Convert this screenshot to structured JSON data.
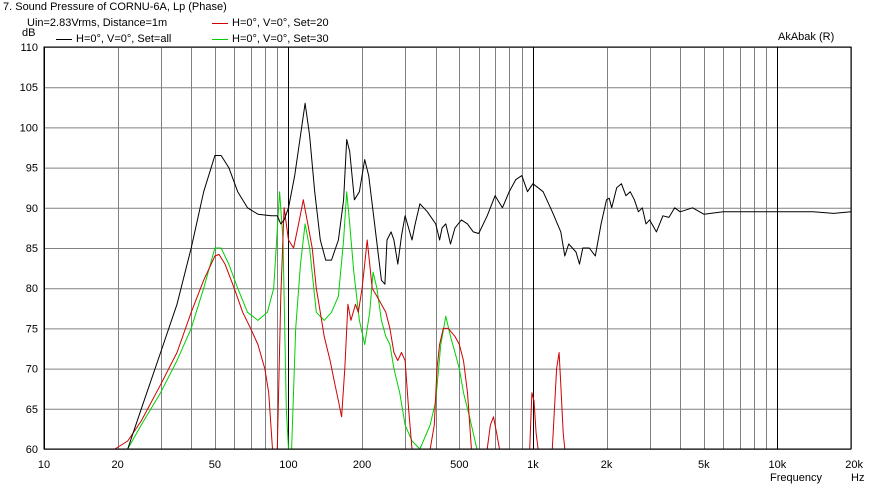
{
  "window": {
    "title": "7. Sound Pressure of CORNU-6A, Lp (Phase)"
  },
  "header": {
    "conditions": "Uin=2.83Vrms, Distance=1m",
    "credit": "AkAbak (R)"
  },
  "colors": {
    "set_all": "#000000",
    "set_20": "#d00000",
    "set_30": "#00d000",
    "grid": "#808080",
    "axis": "#000000"
  },
  "chart_data": {
    "type": "line",
    "title": "7. Sound Pressure of CORNU-6A, Lp (Phase)",
    "xlabel": "Frequency",
    "xunit": "Hz",
    "ylabel": "",
    "yunit": "dB",
    "x_scale": "log",
    "xlim": [
      10,
      20000
    ],
    "ylim": [
      60,
      110
    ],
    "grid": true,
    "legend": "top-left",
    "x_ticks": [
      {
        "value": 10,
        "label": "10"
      },
      {
        "value": 20,
        "label": "20"
      },
      {
        "value": 50,
        "label": "50"
      },
      {
        "value": 100,
        "label": "100"
      },
      {
        "value": 200,
        "label": "200"
      },
      {
        "value": 500,
        "label": "500"
      },
      {
        "value": 1000,
        "label": "1k"
      },
      {
        "value": 2000,
        "label": "2k"
      },
      {
        "value": 5000,
        "label": "5k"
      },
      {
        "value": 10000,
        "label": "10k"
      },
      {
        "value": 20000,
        "label": "20k"
      }
    ],
    "y_ticks": [
      60,
      65,
      70,
      75,
      80,
      85,
      90,
      95,
      100,
      105,
      110
    ],
    "series": [
      {
        "name": "H=0°, V=0°, Set=all",
        "color": "#000000",
        "points": [
          [
            22,
            60
          ],
          [
            25,
            65
          ],
          [
            30,
            72
          ],
          [
            35,
            78
          ],
          [
            40,
            85
          ],
          [
            45,
            92
          ],
          [
            50,
            96.5
          ],
          [
            53,
            96.5
          ],
          [
            57,
            95
          ],
          [
            62,
            92
          ],
          [
            68,
            90
          ],
          [
            75,
            89.2
          ],
          [
            85,
            89
          ],
          [
            90,
            89
          ],
          [
            93,
            88
          ],
          [
            96,
            88.5
          ],
          [
            100,
            90
          ],
          [
            106,
            94
          ],
          [
            112,
            99
          ],
          [
            117,
            103
          ],
          [
            122,
            99
          ],
          [
            128,
            92
          ],
          [
            135,
            86
          ],
          [
            142,
            83.5
          ],
          [
            150,
            83.5
          ],
          [
            160,
            86
          ],
          [
            168,
            91
          ],
          [
            173,
            98.5
          ],
          [
            178,
            97
          ],
          [
            186,
            91
          ],
          [
            195,
            92
          ],
          [
            205,
            96
          ],
          [
            213,
            94
          ],
          [
            225,
            88
          ],
          [
            240,
            81
          ],
          [
            248,
            80.5
          ],
          [
            253,
            86
          ],
          [
            263,
            87
          ],
          [
            270,
            86
          ],
          [
            280,
            83
          ],
          [
            290,
            86.5
          ],
          [
            300,
            89
          ],
          [
            320,
            86
          ],
          [
            330,
            88
          ],
          [
            345,
            90.5
          ],
          [
            370,
            89.5
          ],
          [
            400,
            88
          ],
          [
            415,
            86
          ],
          [
            425,
            87.5
          ],
          [
            440,
            88
          ],
          [
            460,
            85.5
          ],
          [
            480,
            87.5
          ],
          [
            510,
            88.5
          ],
          [
            540,
            88
          ],
          [
            570,
            87
          ],
          [
            600,
            86.8
          ],
          [
            650,
            89
          ],
          [
            700,
            91.5
          ],
          [
            750,
            90
          ],
          [
            800,
            92
          ],
          [
            850,
            93.5
          ],
          [
            900,
            94
          ],
          [
            950,
            92
          ],
          [
            1000,
            93
          ],
          [
            1100,
            92
          ],
          [
            1200,
            89.5
          ],
          [
            1300,
            87
          ],
          [
            1350,
            84
          ],
          [
            1400,
            85.5
          ],
          [
            1500,
            84.5
          ],
          [
            1550,
            83
          ],
          [
            1600,
            85
          ],
          [
            1700,
            85
          ],
          [
            1800,
            84
          ],
          [
            1900,
            88
          ],
          [
            2000,
            91
          ],
          [
            2050,
            91.2
          ],
          [
            2100,
            90
          ],
          [
            2200,
            92.5
          ],
          [
            2300,
            93
          ],
          [
            2400,
            91.5
          ],
          [
            2500,
            92
          ],
          [
            2600,
            91
          ],
          [
            2700,
            89.5
          ],
          [
            2800,
            90
          ],
          [
            2900,
            88
          ],
          [
            3000,
            88.5
          ],
          [
            3200,
            87
          ],
          [
            3400,
            89
          ],
          [
            3600,
            88.8
          ],
          [
            3800,
            90
          ],
          [
            4000,
            89.5
          ],
          [
            4500,
            90
          ],
          [
            5000,
            89.2
          ],
          [
            6000,
            89.5
          ],
          [
            8000,
            89.5
          ],
          [
            10000,
            89.5
          ],
          [
            14000,
            89.5
          ],
          [
            17000,
            89.3
          ],
          [
            20000,
            89.5
          ]
        ]
      },
      {
        "name": "H=0°, V=0°, Set=20",
        "color": "#d00000",
        "points": [
          [
            19.5,
            60
          ],
          [
            22,
            61
          ],
          [
            25,
            63.5
          ],
          [
            30,
            68
          ],
          [
            35,
            72
          ],
          [
            40,
            77
          ],
          [
            45,
            81
          ],
          [
            50,
            84
          ],
          [
            52,
            84.2
          ],
          [
            55,
            83
          ],
          [
            60,
            80
          ],
          [
            65,
            77
          ],
          [
            70,
            75
          ],
          [
            75,
            73
          ],
          [
            80,
            70
          ],
          [
            83,
            67
          ],
          [
            86,
            60
          ],
          [
            90,
            60
          ],
          [
            93,
            79
          ],
          [
            96,
            90
          ],
          [
            100,
            86
          ],
          [
            105,
            85
          ],
          [
            110,
            88
          ],
          [
            115,
            91
          ],
          [
            120,
            88
          ],
          [
            125,
            85
          ],
          [
            130,
            80
          ],
          [
            135,
            77
          ],
          [
            140,
            74
          ],
          [
            148,
            71
          ],
          [
            155,
            68
          ],
          [
            160,
            66
          ],
          [
            165,
            64
          ],
          [
            170,
            70
          ],
          [
            175,
            78
          ],
          [
            180,
            76
          ],
          [
            188,
            78
          ],
          [
            193,
            77
          ],
          [
            200,
            80
          ],
          [
            205,
            83
          ],
          [
            210,
            86
          ],
          [
            215,
            83
          ],
          [
            220,
            80
          ],
          [
            230,
            79
          ],
          [
            240,
            78
          ],
          [
            250,
            77
          ],
          [
            260,
            75
          ],
          [
            270,
            72
          ],
          [
            280,
            71
          ],
          [
            290,
            72
          ],
          [
            300,
            71
          ],
          [
            310,
            65
          ],
          [
            320,
            60
          ],
          [
            380,
            60
          ],
          [
            395,
            63
          ],
          [
            405,
            70
          ],
          [
            415,
            73
          ],
          [
            430,
            75
          ],
          [
            450,
            75
          ],
          [
            480,
            74
          ],
          [
            500,
            73
          ],
          [
            520,
            71
          ],
          [
            540,
            67
          ],
          [
            560,
            60
          ],
          [
            650,
            60
          ],
          [
            670,
            63
          ],
          [
            690,
            64
          ],
          [
            710,
            62
          ],
          [
            730,
            60
          ],
          [
            970,
            60
          ],
          [
            990,
            67
          ],
          [
            1010,
            66
          ],
          [
            1030,
            62
          ],
          [
            1050,
            60
          ],
          [
            1200,
            60
          ],
          [
            1250,
            70
          ],
          [
            1280,
            72
          ],
          [
            1300,
            68
          ],
          [
            1330,
            62
          ],
          [
            1350,
            60
          ],
          [
            20000,
            60
          ]
        ]
      },
      {
        "name": "H=0°, V=0°, Set=30",
        "color": "#00d000",
        "points": [
          [
            22,
            60
          ],
          [
            25,
            63
          ],
          [
            30,
            67
          ],
          [
            35,
            71
          ],
          [
            40,
            75
          ],
          [
            45,
            80
          ],
          [
            50,
            85
          ],
          [
            53,
            85
          ],
          [
            57,
            83
          ],
          [
            62,
            80
          ],
          [
            68,
            77
          ],
          [
            75,
            76
          ],
          [
            82,
            77
          ],
          [
            87,
            80
          ],
          [
            92,
            92
          ],
          [
            95,
            86
          ],
          [
            98,
            65
          ],
          [
            100,
            60
          ],
          [
            103,
            60
          ],
          [
            107,
            75
          ],
          [
            112,
            83
          ],
          [
            117,
            88
          ],
          [
            122,
            85
          ],
          [
            130,
            77
          ],
          [
            140,
            76
          ],
          [
            150,
            77
          ],
          [
            160,
            79
          ],
          [
            168,
            86
          ],
          [
            173,
            92
          ],
          [
            178,
            88
          ],
          [
            185,
            82
          ],
          [
            195,
            76
          ],
          [
            205,
            73
          ],
          [
            215,
            77
          ],
          [
            222,
            82
          ],
          [
            230,
            80
          ],
          [
            240,
            76
          ],
          [
            250,
            74
          ],
          [
            260,
            73
          ],
          [
            270,
            70
          ],
          [
            285,
            67
          ],
          [
            300,
            63
          ],
          [
            320,
            61
          ],
          [
            345,
            60
          ],
          [
            380,
            63
          ],
          [
            400,
            66
          ],
          [
            420,
            73
          ],
          [
            440,
            76.5
          ],
          [
            460,
            74
          ],
          [
            480,
            72
          ],
          [
            500,
            70
          ],
          [
            520,
            67
          ],
          [
            550,
            64
          ],
          [
            590,
            60
          ],
          [
            20000,
            60
          ]
        ]
      }
    ]
  }
}
